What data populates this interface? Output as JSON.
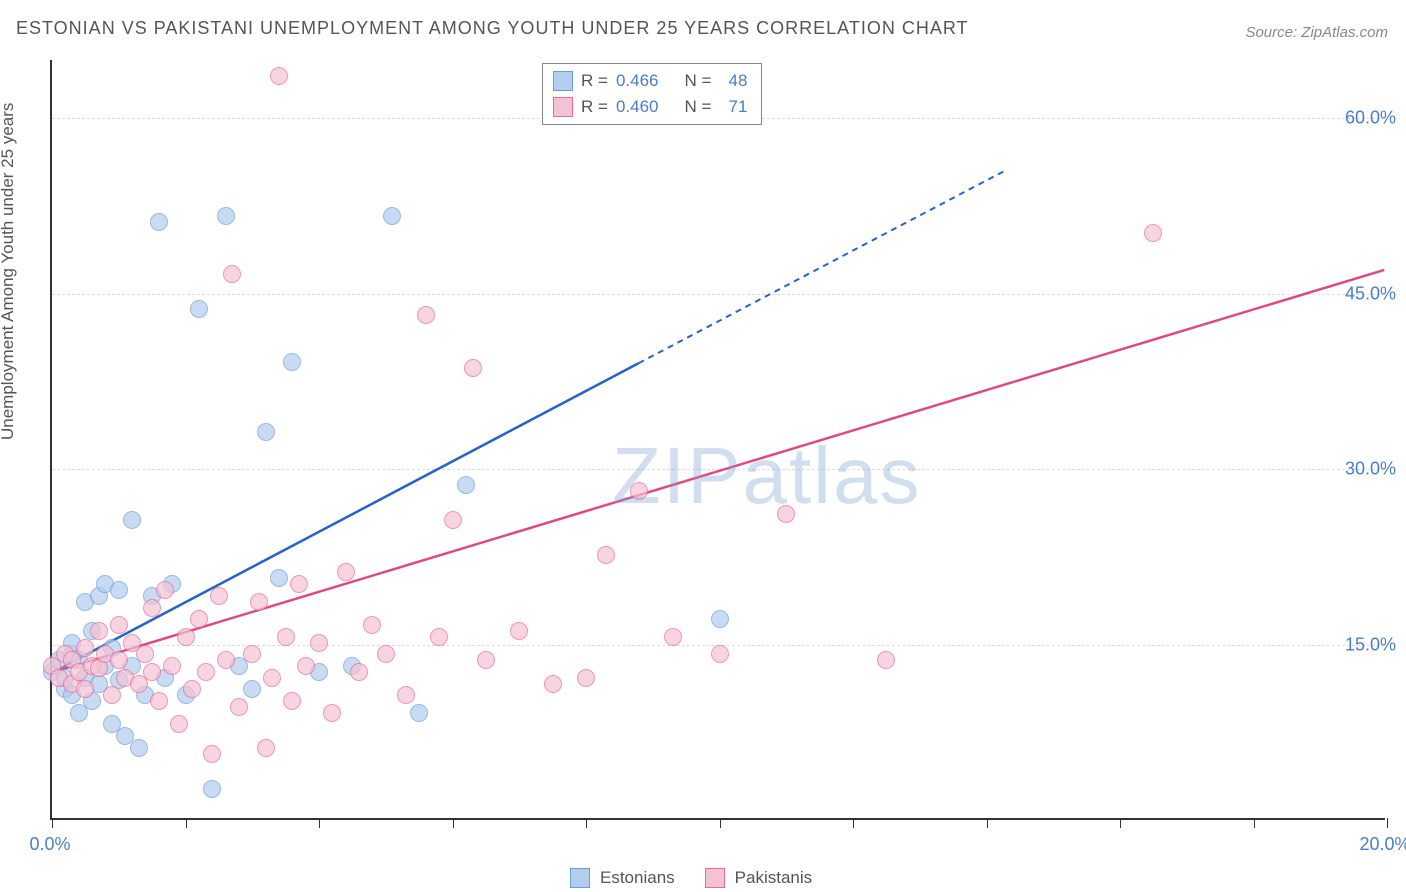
{
  "title": "ESTONIAN VS PAKISTANI UNEMPLOYMENT AMONG YOUTH UNDER 25 YEARS CORRELATION CHART",
  "source_label": "Source: ZipAtlas.com",
  "ylabel": "Unemployment Among Youth under 25 years",
  "watermark_a": "ZIP",
  "watermark_b": "atlas",
  "chart": {
    "type": "scatter",
    "xlim": [
      0,
      20
    ],
    "ylim": [
      0,
      65
    ],
    "x_ticks": [
      0,
      2,
      4,
      6,
      8,
      10,
      12,
      14,
      16,
      18,
      20
    ],
    "x_tick_labels": {
      "0": "0.0%",
      "20": "20.0%"
    },
    "y_gridlines": [
      15,
      30,
      45,
      60
    ],
    "y_tick_labels": {
      "15": "15.0%",
      "30": "30.0%",
      "45": "45.0%",
      "60": "60.0%"
    },
    "background_color": "#ffffff",
    "grid_color": "#dddddd",
    "axis_color": "#333333",
    "series": [
      {
        "name": "Estonians",
        "label": "Estonians",
        "fill_color": "#b3cdef",
        "stroke_color": "#6a9ed8",
        "line_color": "#2663c9",
        "r_value": "0.466",
        "n_value": "48",
        "trend": {
          "x1": 0,
          "y1": 12.5,
          "x2": 8.8,
          "y2": 39,
          "dash_to_x": 14.3,
          "dash_to_y": 55.5
        },
        "points": [
          [
            0.0,
            12.5
          ],
          [
            0.1,
            13.5
          ],
          [
            0.2,
            11.0
          ],
          [
            0.2,
            12.0
          ],
          [
            0.3,
            14.0
          ],
          [
            0.3,
            10.5
          ],
          [
            0.3,
            15.0
          ],
          [
            0.4,
            9.0
          ],
          [
            0.4,
            13.5
          ],
          [
            0.5,
            12.0
          ],
          [
            0.5,
            18.5
          ],
          [
            0.6,
            10.0
          ],
          [
            0.6,
            16.0
          ],
          [
            0.7,
            19.0
          ],
          [
            0.7,
            11.5
          ],
          [
            0.8,
            20.0
          ],
          [
            0.8,
            13.0
          ],
          [
            0.9,
            8.0
          ],
          [
            0.9,
            14.5
          ],
          [
            1.0,
            19.5
          ],
          [
            1.0,
            11.8
          ],
          [
            1.1,
            7.0
          ],
          [
            1.2,
            25.5
          ],
          [
            1.2,
            13.0
          ],
          [
            1.3,
            6.0
          ],
          [
            1.4,
            10.5
          ],
          [
            1.5,
            19.0
          ],
          [
            1.6,
            51.0
          ],
          [
            1.7,
            12.0
          ],
          [
            1.8,
            20.0
          ],
          [
            2.0,
            10.5
          ],
          [
            2.2,
            43.5
          ],
          [
            2.4,
            2.5
          ],
          [
            2.6,
            51.5
          ],
          [
            2.8,
            13.0
          ],
          [
            3.0,
            11.0
          ],
          [
            3.2,
            33.0
          ],
          [
            3.4,
            20.5
          ],
          [
            3.6,
            39.0
          ],
          [
            4.0,
            12.5
          ],
          [
            4.5,
            13.0
          ],
          [
            5.1,
            51.5
          ],
          [
            5.5,
            9.0
          ],
          [
            6.2,
            28.5
          ],
          [
            10.0,
            17.0
          ]
        ]
      },
      {
        "name": "Pakistanis",
        "label": "Pakistanis",
        "fill_color": "#f5c2d3",
        "stroke_color": "#e76b99",
        "line_color": "#e04880",
        "r_value": "0.460",
        "n_value": "71",
        "trend": {
          "x1": 0,
          "y1": 12.5,
          "x2": 20,
          "y2": 47
        },
        "points": [
          [
            0.0,
            13.0
          ],
          [
            0.1,
            12.0
          ],
          [
            0.2,
            14.0
          ],
          [
            0.3,
            11.5
          ],
          [
            0.3,
            13.5
          ],
          [
            0.4,
            12.5
          ],
          [
            0.5,
            14.5
          ],
          [
            0.5,
            11.0
          ],
          [
            0.6,
            13.0
          ],
          [
            0.7,
            16.0
          ],
          [
            0.7,
            12.8
          ],
          [
            0.8,
            14.0
          ],
          [
            0.9,
            10.5
          ],
          [
            1.0,
            13.5
          ],
          [
            1.0,
            16.5
          ],
          [
            1.1,
            12.0
          ],
          [
            1.2,
            15.0
          ],
          [
            1.3,
            11.5
          ],
          [
            1.4,
            14.0
          ],
          [
            1.5,
            18.0
          ],
          [
            1.5,
            12.5
          ],
          [
            1.6,
            10.0
          ],
          [
            1.7,
            19.5
          ],
          [
            1.8,
            13.0
          ],
          [
            1.9,
            8.0
          ],
          [
            2.0,
            15.5
          ],
          [
            2.1,
            11.0
          ],
          [
            2.2,
            17.0
          ],
          [
            2.3,
            12.5
          ],
          [
            2.4,
            5.5
          ],
          [
            2.5,
            19.0
          ],
          [
            2.6,
            13.5
          ],
          [
            2.7,
            46.5
          ],
          [
            2.8,
            9.5
          ],
          [
            3.0,
            14.0
          ],
          [
            3.1,
            18.5
          ],
          [
            3.2,
            6.0
          ],
          [
            3.3,
            12.0
          ],
          [
            3.4,
            63.5
          ],
          [
            3.5,
            15.5
          ],
          [
            3.6,
            10.0
          ],
          [
            3.7,
            20.0
          ],
          [
            3.8,
            13.0
          ],
          [
            4.0,
            15.0
          ],
          [
            4.2,
            9.0
          ],
          [
            4.4,
            21.0
          ],
          [
            4.6,
            12.5
          ],
          [
            4.8,
            16.5
          ],
          [
            5.0,
            14.0
          ],
          [
            5.3,
            10.5
          ],
          [
            5.6,
            43.0
          ],
          [
            5.8,
            15.5
          ],
          [
            6.0,
            25.5
          ],
          [
            6.3,
            38.5
          ],
          [
            6.5,
            13.5
          ],
          [
            7.0,
            16.0
          ],
          [
            7.5,
            11.5
          ],
          [
            8.0,
            12.0
          ],
          [
            8.3,
            22.5
          ],
          [
            8.8,
            28.0
          ],
          [
            9.3,
            15.5
          ],
          [
            10.0,
            14.0
          ],
          [
            11.0,
            26.0
          ],
          [
            12.5,
            13.5
          ],
          [
            16.5,
            50.0
          ]
        ]
      }
    ]
  },
  "legend_header": {
    "r_label": "R =",
    "n_label": "N ="
  },
  "bottom_legend": {
    "items": [
      "Estonians",
      "Pakistanis"
    ]
  }
}
